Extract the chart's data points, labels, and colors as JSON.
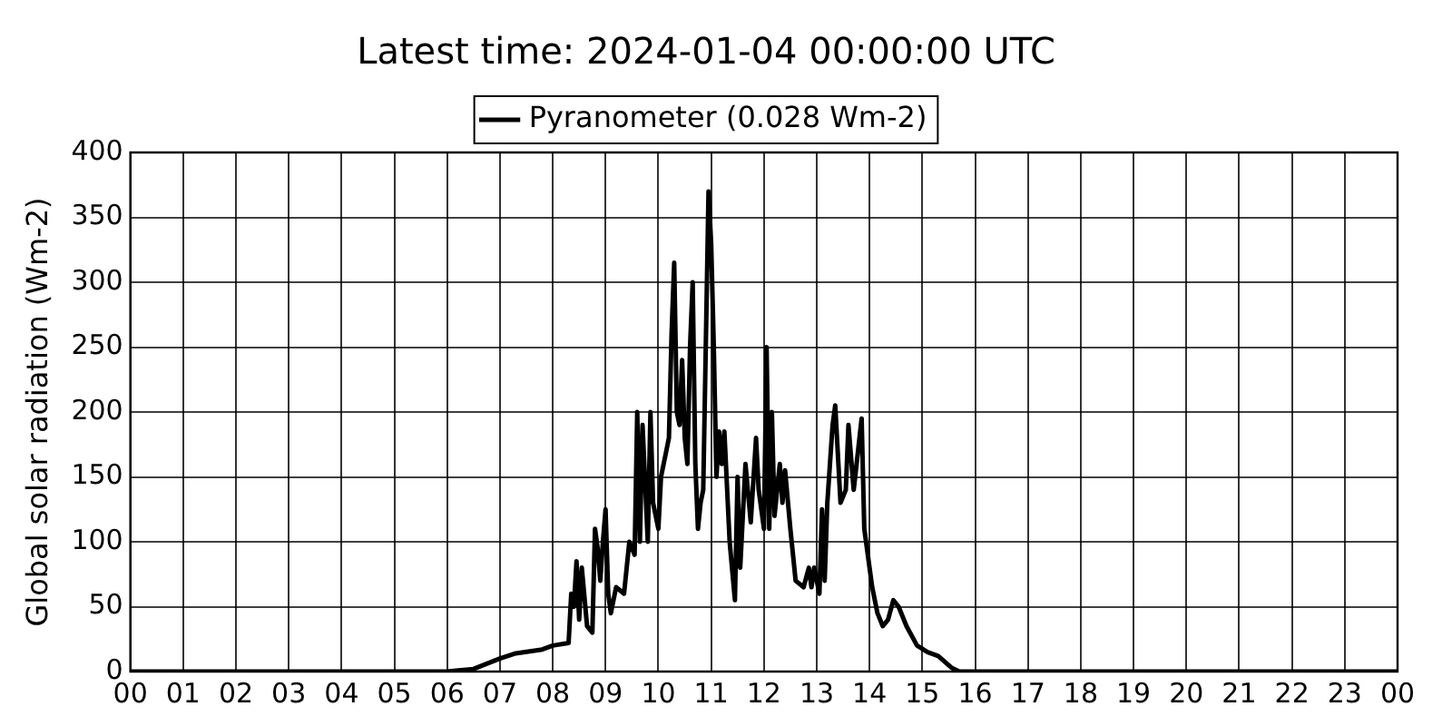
{
  "chart_data": {
    "type": "line",
    "title": "Latest time: 2024-01-04 00:00:00 UTC",
    "ylabel": "Global solar radiation (Wm-2)",
    "xlim": [
      0,
      24
    ],
    "ylim": [
      0,
      400
    ],
    "xticks": [
      {
        "value": 0,
        "label": "00"
      },
      {
        "value": 1,
        "label": "01"
      },
      {
        "value": 2,
        "label": "02"
      },
      {
        "value": 3,
        "label": "03"
      },
      {
        "value": 4,
        "label": "04"
      },
      {
        "value": 5,
        "label": "05"
      },
      {
        "value": 6,
        "label": "06"
      },
      {
        "value": 7,
        "label": "07"
      },
      {
        "value": 8,
        "label": "08"
      },
      {
        "value": 9,
        "label": "09"
      },
      {
        "value": 10,
        "label": "10"
      },
      {
        "value": 11,
        "label": "11"
      },
      {
        "value": 12,
        "label": "12"
      },
      {
        "value": 13,
        "label": "13"
      },
      {
        "value": 14,
        "label": "14"
      },
      {
        "value": 15,
        "label": "15"
      },
      {
        "value": 16,
        "label": "16"
      },
      {
        "value": 17,
        "label": "17"
      },
      {
        "value": 18,
        "label": "18"
      },
      {
        "value": 19,
        "label": "19"
      },
      {
        "value": 20,
        "label": "20"
      },
      {
        "value": 21,
        "label": "21"
      },
      {
        "value": 22,
        "label": "22"
      },
      {
        "value": 23,
        "label": "23"
      },
      {
        "value": 24,
        "label": "00"
      }
    ],
    "yticks": [
      0,
      50,
      100,
      150,
      200,
      250,
      300,
      350,
      400
    ],
    "grid": true,
    "legend": "top",
    "marker": "none",
    "line_style": "solid",
    "series": [
      {
        "name": "Pyranometer (0.028 Wm-2)",
        "color": "#000000",
        "x": [
          0,
          6.0,
          6.5,
          7.0,
          7.3,
          7.8,
          8.0,
          8.3,
          8.35,
          8.4,
          8.45,
          8.5,
          8.55,
          8.65,
          8.75,
          8.8,
          8.85,
          8.9,
          8.95,
          9.0,
          9.05,
          9.1,
          9.2,
          9.35,
          9.45,
          9.55,
          9.6,
          9.65,
          9.7,
          9.8,
          9.85,
          9.9,
          10.0,
          10.05,
          10.15,
          10.2,
          10.25,
          10.3,
          10.35,
          10.4,
          10.45,
          10.5,
          10.55,
          10.6,
          10.65,
          10.7,
          10.75,
          10.8,
          10.85,
          10.95,
          11.0,
          11.05,
          11.1,
          11.15,
          11.2,
          11.25,
          11.35,
          11.45,
          11.5,
          11.55,
          11.65,
          11.75,
          11.85,
          11.9,
          12.0,
          12.05,
          12.1,
          12.15,
          12.2,
          12.3,
          12.35,
          12.4,
          12.5,
          12.6,
          12.75,
          12.85,
          12.9,
          12.95,
          13.05,
          13.1,
          13.15,
          13.2,
          13.3,
          13.35,
          13.45,
          13.55,
          13.6,
          13.7,
          13.85,
          13.9,
          14.05,
          14.15,
          14.25,
          14.35,
          14.45,
          14.55,
          14.7,
          14.9,
          15.1,
          15.3,
          15.55,
          15.7,
          24
        ],
        "values": [
          0,
          0,
          2,
          10,
          14,
          17,
          20,
          22,
          60,
          50,
          85,
          40,
          80,
          35,
          30,
          110,
          95,
          70,
          100,
          125,
          60,
          45,
          65,
          60,
          100,
          90,
          200,
          100,
          190,
          100,
          200,
          130,
          110,
          150,
          170,
          180,
          260,
          315,
          200,
          190,
          240,
          180,
          160,
          250,
          300,
          160,
          110,
          130,
          140,
          370,
          330,
          250,
          150,
          185,
          160,
          185,
          100,
          55,
          150,
          80,
          160,
          115,
          180,
          140,
          110,
          250,
          110,
          200,
          120,
          160,
          130,
          155,
          110,
          70,
          65,
          80,
          65,
          80,
          60,
          125,
          70,
          130,
          190,
          205,
          130,
          140,
          190,
          140,
          195,
          110,
          65,
          45,
          35,
          40,
          55,
          50,
          35,
          20,
          15,
          12,
          3,
          0,
          0
        ]
      }
    ]
  }
}
